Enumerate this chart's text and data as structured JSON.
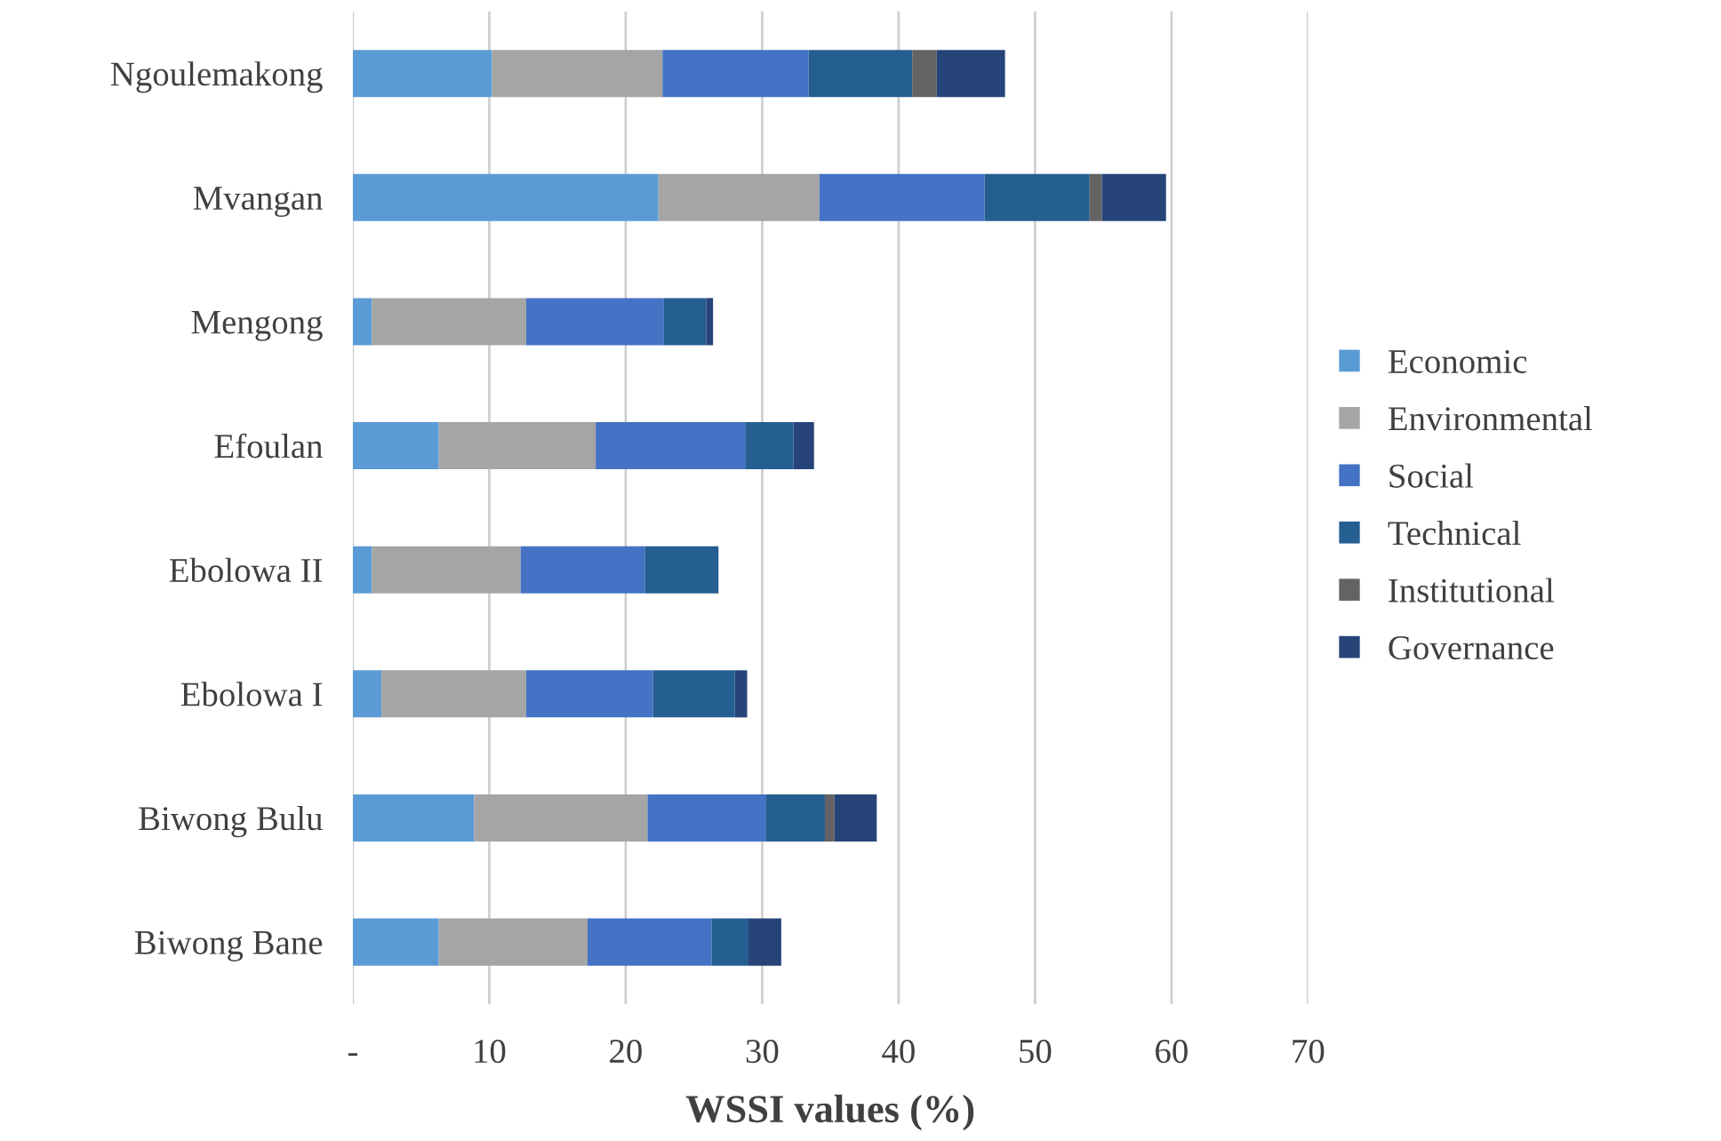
{
  "chart_data": {
    "type": "bar",
    "orientation": "horizontal",
    "stacked": true,
    "xlabel": "WSSI values (%)",
    "categories": [
      "Ngoulemakong",
      "Mvangan",
      "Mengong",
      "Efoulan",
      "Ebolowa II",
      "Ebolowa I",
      "Biwong Bulu",
      "Biwong Bane"
    ],
    "series": [
      {
        "name": "Economic",
        "color": "#5b9bd5",
        "values": [
          10.2,
          22.4,
          1.4,
          6.3,
          1.4,
          2.1,
          8.9,
          6.3
        ]
      },
      {
        "name": "Environmental",
        "color": "#a5a5a5",
        "values": [
          12.5,
          11.8,
          11.3,
          11.5,
          10.9,
          10.6,
          12.7,
          10.9
        ]
      },
      {
        "name": "Social",
        "color": "#4472c4",
        "values": [
          10.7,
          12.1,
          10.1,
          11.0,
          9.1,
          9.3,
          8.7,
          9.1
        ]
      },
      {
        "name": "Technical",
        "color": "#255e91",
        "values": [
          7.6,
          7.7,
          3.1,
          3.5,
          5.4,
          6.0,
          4.3,
          2.7
        ]
      },
      {
        "name": "Institutional",
        "color": "#636363",
        "values": [
          1.8,
          0.9,
          0,
          0,
          0,
          0,
          0.7,
          0
        ]
      },
      {
        "name": "Governance",
        "color": "#264478",
        "values": [
          5.0,
          4.7,
          0.5,
          1.5,
          0,
          0.9,
          3.1,
          2.4
        ]
      }
    ],
    "xlim": [
      0,
      70
    ],
    "xticks": [
      {
        "value": 0,
        "label": "-"
      },
      10,
      20,
      30,
      40,
      50,
      60,
      70
    ],
    "grid": "x",
    "legend": "right"
  }
}
